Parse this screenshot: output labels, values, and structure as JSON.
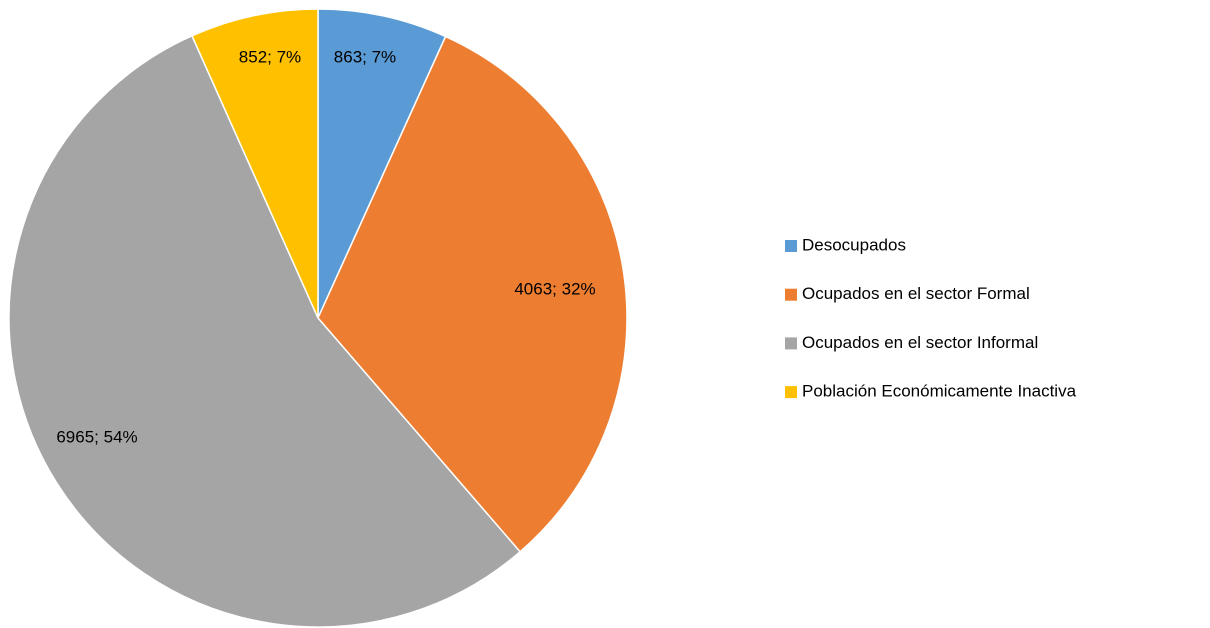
{
  "chart_data": {
    "type": "pie",
    "categories": [
      "Desocupados",
      "Ocupados en el sector Formal",
      "Ocupados en el sector Informal",
      "Población Económicamente Inactiva"
    ],
    "values": [
      863,
      4063,
      6965,
      852
    ],
    "value_labels": [
      "863; 7%",
      "4063; 32%",
      "6965; 54%",
      "852; 7%"
    ],
    "colors": [
      "#5b9bd5",
      "#ed7d31",
      "#a5a5a5",
      "#ffc000"
    ],
    "legend": "right"
  }
}
